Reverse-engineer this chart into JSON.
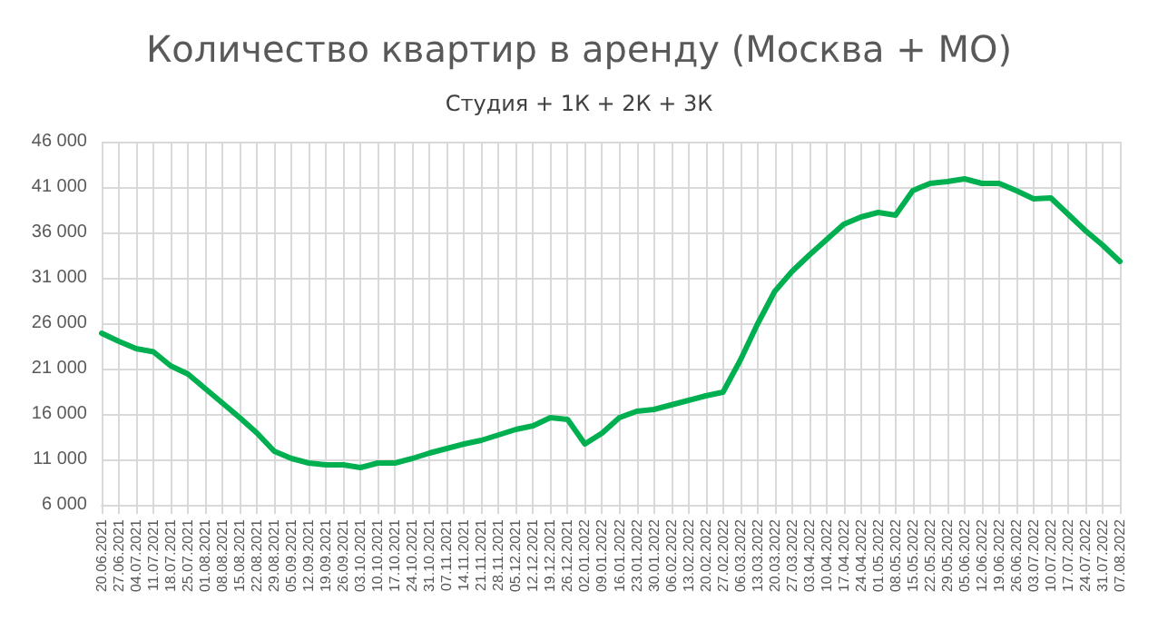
{
  "chart_data": {
    "type": "line",
    "title": "Количество квартир в аренду (Москва + МО)",
    "subtitle": "Студия + 1К + 2К + 3К",
    "categories": [
      "20.06.2021",
      "27.06.2021",
      "04.07.2021",
      "11.07.2021",
      "18.07.2021",
      "25.07.2021",
      "01.08.2021",
      "08.08.2021",
      "15.08.2021",
      "22.08.2021",
      "29.08.2021",
      "05.09.2021",
      "12.09.2021",
      "19.09.2021",
      "26.09.2021",
      "03.10.2021",
      "10.10.2021",
      "17.10.2021",
      "24.10.2021",
      "31.10.2021",
      "07.11.2021",
      "14.11.2021",
      "21.11.2021",
      "28.11.2021",
      "05.12.2021",
      "12.12.2021",
      "19.12.2021",
      "26.12.2021",
      "02.01.2022",
      "09.01.2022",
      "16.01.2022",
      "23.01.2022",
      "30.01.2022",
      "06.02.2022",
      "13.02.2022",
      "20.02.2022",
      "27.02.2022",
      "06.03.2022",
      "13.03.2022",
      "20.03.2022",
      "27.03.2022",
      "03.04.2022",
      "10.04.2022",
      "17.04.2022",
      "24.04.2022",
      "01.05.2022",
      "08.05.2022",
      "15.05.2022",
      "22.05.2022",
      "29.05.2022",
      "05.06.2022",
      "12.06.2022",
      "19.06.2022",
      "26.06.2022",
      "03.07.2022",
      "10.07.2022",
      "17.07.2022",
      "24.07.2022",
      "31.07.2022",
      "07.08.2022"
    ],
    "series": [
      {
        "color": "#00b050",
        "values": [
          24900,
          24000,
          23200,
          22850,
          21300,
          20400,
          18800,
          17200,
          15600,
          13900,
          11900,
          11100,
          10600,
          10400,
          10400,
          10100,
          10600,
          10600,
          11100,
          11700,
          12200,
          12700,
          13100,
          13700,
          14300,
          14700,
          15600,
          15400,
          12700,
          13900,
          15600,
          16300,
          16500,
          17000,
          17500,
          18000,
          18400,
          21900,
          25900,
          29500,
          31700,
          33500,
          35200,
          36900,
          37700,
          38200,
          37900,
          40600,
          41400,
          41600,
          41900,
          41400,
          41400,
          40600,
          39700,
          39800,
          38000,
          36200,
          34600,
          32800
        ]
      }
    ],
    "ylim": [
      6000,
      46000
    ],
    "yticks": [
      {
        "value": 6000,
        "label": "6 000"
      },
      {
        "value": 11000,
        "label": "11 000"
      },
      {
        "value": 16000,
        "label": "16 000"
      },
      {
        "value": 21000,
        "label": "21 000"
      },
      {
        "value": 26000,
        "label": "26 000"
      },
      {
        "value": 31000,
        "label": "31 000"
      },
      {
        "value": 36000,
        "label": "36 000"
      },
      {
        "value": 41000,
        "label": "41 000"
      },
      {
        "value": 46000,
        "label": "46 000"
      }
    ],
    "grid": true,
    "marker": "none",
    "line_style": "solid"
  }
}
